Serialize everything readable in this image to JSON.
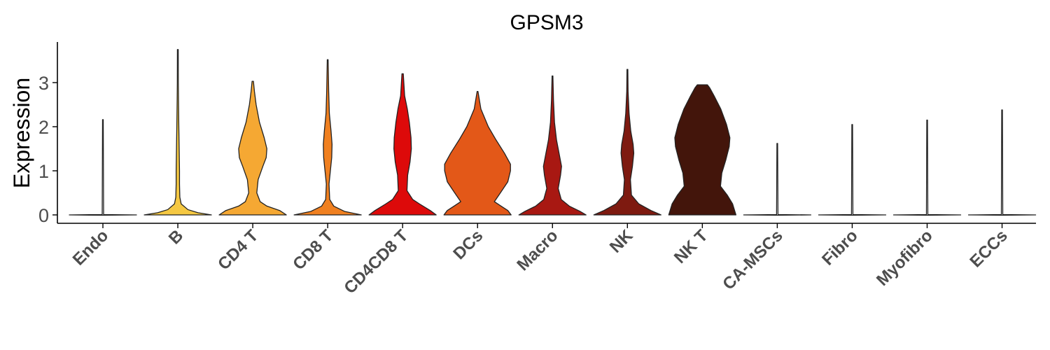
{
  "chart_data": {
    "type": "violin",
    "title": "GPSM3",
    "xlabel": "",
    "ylabel": "Expression",
    "ylim": [
      -0.2,
      3.85
    ],
    "yticks": [
      0,
      1,
      2,
      3
    ],
    "grid": false,
    "legend": "none",
    "categories": [
      "Endo",
      "B",
      "CD4 T",
      "CD8 T",
      "CD4CD8 T",
      "DCs",
      "Macro",
      "NK",
      "NK T",
      "CA-MSCs",
      "Fibro",
      "Myofibro",
      "ECCs"
    ],
    "colors": [
      "#ffffff",
      "#f5c842",
      "#f5a833",
      "#f08020",
      "#dd0a0a",
      "#e35818",
      "#a81812",
      "#7e1a10",
      "#43150b",
      "#ffffff",
      "#ffffff",
      "#ffffff",
      "#ffffff"
    ],
    "max_values": [
      2.16,
      3.75,
      3.03,
      3.52,
      3.2,
      2.8,
      3.15,
      3.3,
      2.95,
      1.62,
      2.05,
      2.15,
      2.38
    ],
    "density_profiles": [
      [],
      [
        [
          0,
          1.0
        ],
        [
          0.05,
          0.6
        ],
        [
          0.12,
          0.3
        ],
        [
          0.25,
          0.1
        ],
        [
          0.4,
          0.06
        ],
        [
          0.7,
          0.05
        ],
        [
          1.0,
          0.05
        ],
        [
          1.5,
          0.04
        ],
        [
          2.0,
          0.03
        ],
        [
          2.6,
          0.02
        ],
        [
          3.0,
          0.015
        ],
        [
          3.75,
          0.01
        ]
      ],
      [
        [
          0,
          1.0
        ],
        [
          0.1,
          0.8
        ],
        [
          0.2,
          0.42
        ],
        [
          0.3,
          0.22
        ],
        [
          0.5,
          0.12
        ],
        [
          0.8,
          0.16
        ],
        [
          1.1,
          0.3
        ],
        [
          1.3,
          0.4
        ],
        [
          1.5,
          0.42
        ],
        [
          1.75,
          0.34
        ],
        [
          2.1,
          0.2
        ],
        [
          2.5,
          0.1
        ],
        [
          2.8,
          0.05
        ],
        [
          3.03,
          0.02
        ]
      ],
      [
        [
          0,
          1.0
        ],
        [
          0.08,
          0.5
        ],
        [
          0.2,
          0.18
        ],
        [
          0.35,
          0.06
        ],
        [
          0.7,
          0.04
        ],
        [
          1.0,
          0.08
        ],
        [
          1.3,
          0.12
        ],
        [
          1.6,
          0.13
        ],
        [
          1.9,
          0.1
        ],
        [
          2.3,
          0.05
        ],
        [
          2.8,
          0.03
        ],
        [
          3.52,
          0.01
        ]
      ],
      [
        [
          0,
          1.0
        ],
        [
          0.1,
          0.82
        ],
        [
          0.25,
          0.5
        ],
        [
          0.35,
          0.3
        ],
        [
          0.55,
          0.13
        ],
        [
          0.9,
          0.15
        ],
        [
          1.2,
          0.22
        ],
        [
          1.5,
          0.26
        ],
        [
          1.75,
          0.25
        ],
        [
          2.1,
          0.2
        ],
        [
          2.4,
          0.14
        ],
        [
          2.7,
          0.06
        ],
        [
          3.2,
          0.02
        ]
      ],
      [
        [
          0,
          1.0
        ],
        [
          0.1,
          0.9
        ],
        [
          0.2,
          0.7
        ],
        [
          0.3,
          0.5
        ],
        [
          0.5,
          0.68
        ],
        [
          0.75,
          0.9
        ],
        [
          1.0,
          0.98
        ],
        [
          1.15,
          0.98
        ],
        [
          1.4,
          0.8
        ],
        [
          1.7,
          0.55
        ],
        [
          2.0,
          0.32
        ],
        [
          2.4,
          0.1
        ],
        [
          2.8,
          0.01
        ]
      ],
      [
        [
          0,
          1.0
        ],
        [
          0.08,
          0.82
        ],
        [
          0.2,
          0.5
        ],
        [
          0.35,
          0.26
        ],
        [
          0.6,
          0.17
        ],
        [
          0.9,
          0.24
        ],
        [
          1.1,
          0.27
        ],
        [
          1.3,
          0.22
        ],
        [
          1.7,
          0.12
        ],
        [
          2.1,
          0.06
        ],
        [
          2.6,
          0.03
        ],
        [
          3.15,
          0.01
        ]
      ],
      [
        [
          0,
          1.0
        ],
        [
          0.1,
          0.7
        ],
        [
          0.25,
          0.34
        ],
        [
          0.45,
          0.12
        ],
        [
          0.8,
          0.09
        ],
        [
          1.1,
          0.15
        ],
        [
          1.4,
          0.19
        ],
        [
          1.6,
          0.17
        ],
        [
          1.9,
          0.1
        ],
        [
          2.3,
          0.05
        ],
        [
          2.8,
          0.02
        ],
        [
          3.3,
          0.01
        ]
      ],
      [
        [
          0,
          1.0
        ],
        [
          0.1,
          0.96
        ],
        [
          0.25,
          0.9
        ],
        [
          0.45,
          0.74
        ],
        [
          0.65,
          0.54
        ],
        [
          0.95,
          0.58
        ],
        [
          1.25,
          0.7
        ],
        [
          1.55,
          0.8
        ],
        [
          1.75,
          0.82
        ],
        [
          2.05,
          0.72
        ],
        [
          2.4,
          0.55
        ],
        [
          2.7,
          0.35
        ],
        [
          2.88,
          0.22
        ],
        [
          2.95,
          0.15
        ]
      ],
      [],
      [],
      [],
      []
    ]
  }
}
